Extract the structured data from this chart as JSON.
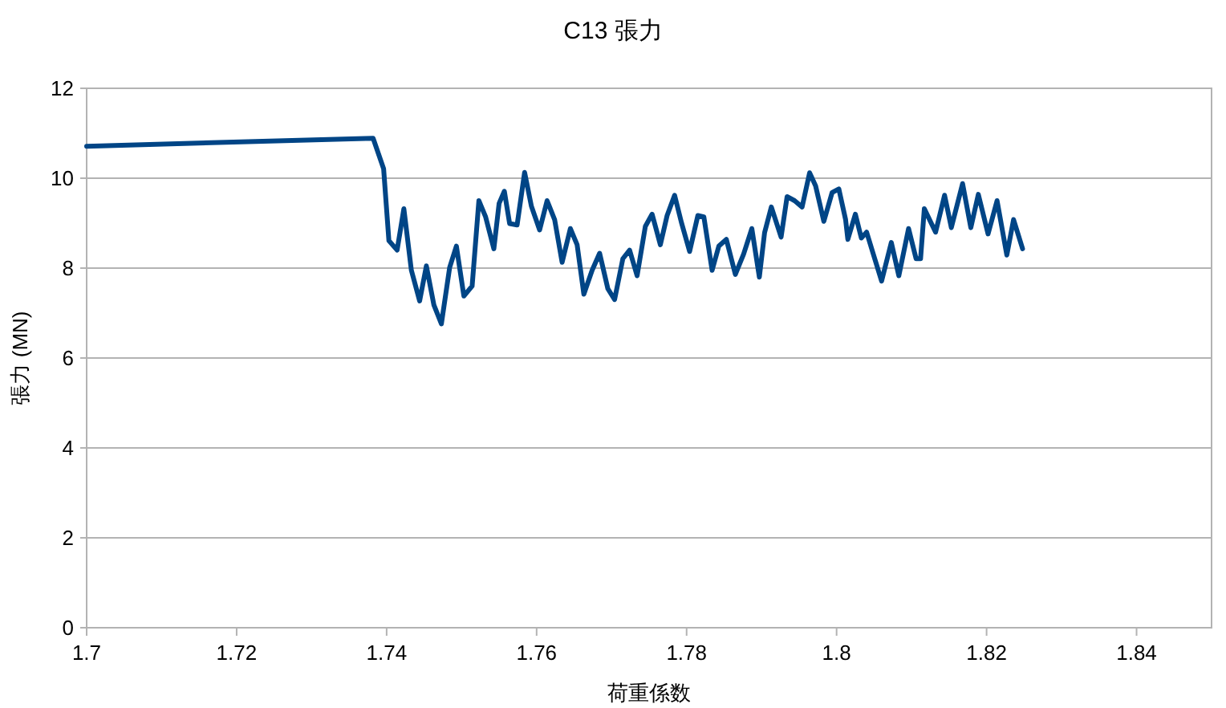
{
  "chart_data": {
    "type": "line",
    "title": "C13 張力",
    "xlabel": "荷重係数",
    "ylabel": "張力 (MN)",
    "xlim": [
      1.7,
      1.85
    ],
    "xticks": [
      1.7,
      1.72,
      1.74,
      1.76,
      1.78,
      1.8,
      1.82,
      1.84
    ],
    "ylim": [
      0,
      12
    ],
    "yticks": [
      0,
      2,
      4,
      6,
      8,
      10,
      12
    ],
    "grid": "y",
    "marker": "none",
    "line_style": "solid",
    "series": [
      {
        "color": "#004586",
        "x": [
          1.7,
          1.7382,
          1.7396,
          1.7403,
          1.7414,
          1.7423,
          1.7433,
          1.7444,
          1.7453,
          1.7463,
          1.7473,
          1.7484,
          1.7493,
          1.7503,
          1.7514,
          1.7523,
          1.7532,
          1.7543,
          1.755,
          1.7557,
          1.7564,
          1.7574,
          1.7584,
          1.7593,
          1.7604,
          1.7614,
          1.7624,
          1.7634,
          1.7645,
          1.7654,
          1.7663,
          1.7674,
          1.7684,
          1.7695,
          1.7704,
          1.7715,
          1.7724,
          1.7734,
          1.7745,
          1.7754,
          1.7765,
          1.7774,
          1.7784,
          1.7793,
          1.7804,
          1.7815,
          1.7823,
          1.7834,
          1.7843,
          1.7853,
          1.7865,
          1.7876,
          1.7887,
          1.7897,
          1.7904,
          1.7913,
          1.7926,
          1.7934,
          1.7944,
          1.7954,
          1.7964,
          1.7972,
          1.7983,
          1.7994,
          1.8003,
          1.8012,
          1.8015,
          1.8025,
          1.8033,
          1.804,
          1.8049,
          1.806,
          1.8073,
          1.8083,
          1.8096,
          1.8106,
          1.8112,
          1.8117,
          1.8132,
          1.8144,
          1.8153,
          1.8168,
          1.8179,
          1.8189,
          1.8202,
          1.8214,
          1.8227,
          1.8236,
          1.8248
        ],
        "values": [
          10.71,
          10.89,
          10.21,
          8.61,
          8.4,
          9.32,
          7.95,
          7.27,
          8.05,
          7.18,
          6.76,
          8.01,
          8.49,
          7.38,
          7.6,
          9.5,
          9.14,
          8.43,
          9.44,
          9.71,
          8.99,
          8.96,
          10.13,
          9.38,
          8.85,
          9.5,
          9.08,
          8.13,
          8.88,
          8.52,
          7.42,
          7.95,
          8.33,
          7.54,
          7.3,
          8.21,
          8.4,
          7.83,
          8.93,
          9.2,
          8.52,
          9.17,
          9.62,
          9.02,
          8.37,
          9.17,
          9.14,
          7.95,
          8.49,
          8.64,
          7.86,
          8.31,
          8.88,
          7.8,
          8.79,
          9.36,
          8.69,
          9.59,
          9.5,
          9.36,
          10.12,
          9.83,
          9.04,
          9.68,
          9.76,
          9.08,
          8.64,
          9.2,
          8.67,
          8.8,
          8.31,
          7.71,
          8.57,
          7.83,
          8.88,
          8.21,
          8.21,
          9.32,
          8.8,
          9.62,
          8.9,
          9.88,
          8.9,
          9.64,
          8.76,
          9.5,
          8.29,
          9.08,
          8.43
        ]
      }
    ]
  }
}
